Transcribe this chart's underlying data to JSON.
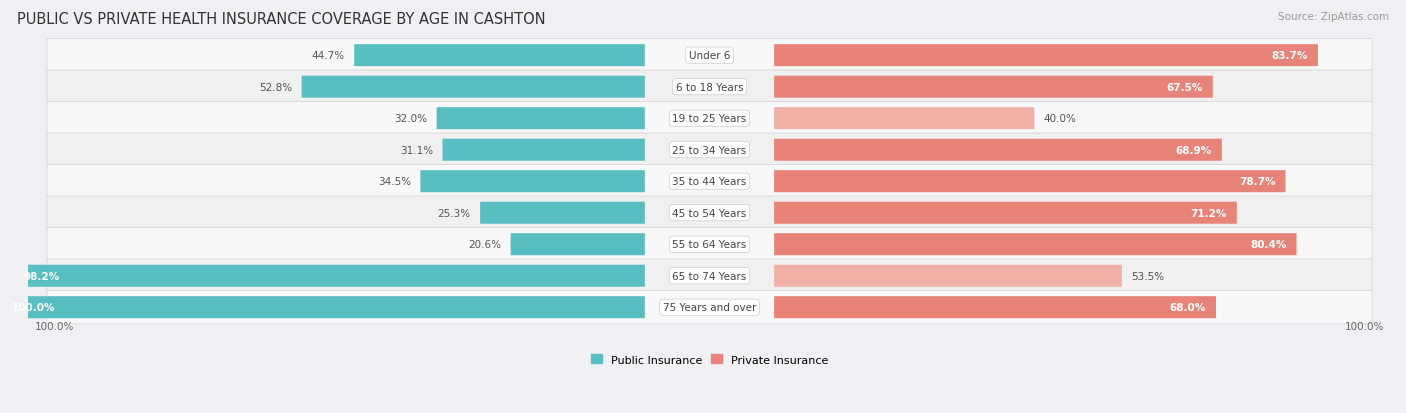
{
  "title": "PUBLIC VS PRIVATE HEALTH INSURANCE COVERAGE BY AGE IN CASHTON",
  "source": "Source: ZipAtlas.com",
  "categories": [
    "Under 6",
    "6 to 18 Years",
    "19 to 25 Years",
    "25 to 34 Years",
    "35 to 44 Years",
    "45 to 54 Years",
    "55 to 64 Years",
    "65 to 74 Years",
    "75 Years and over"
  ],
  "public": [
    44.7,
    52.8,
    32.0,
    31.1,
    34.5,
    25.3,
    20.6,
    98.2,
    100.0
  ],
  "private": [
    83.7,
    67.5,
    40.0,
    68.9,
    78.7,
    71.2,
    80.4,
    53.5,
    68.0
  ],
  "public_color": "#59bec1",
  "private_color": "#e8837a",
  "private_color_light": "#f0b0a8",
  "row_bg_color": "#e8e8ec",
  "row_inner_bg_odd": "#f8f8f8",
  "row_inner_bg_even": "#f0f0f0",
  "fig_bg": "#f0f0f4",
  "max_value": 100.0,
  "title_fontsize": 10.5,
  "label_fontsize": 7.5,
  "value_fontsize": 7.5,
  "tick_fontsize": 7.5,
  "source_fontsize": 7.5,
  "legend_fontsize": 8,
  "private_light_rows": [
    2,
    7
  ],
  "public_label_inside_rows": [
    7,
    8
  ],
  "private_label_outside_rows": [
    2,
    7
  ]
}
